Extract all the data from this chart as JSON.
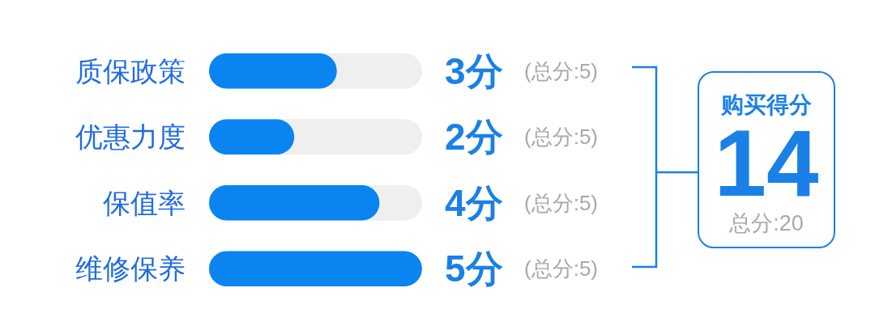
{
  "chart_data": [
    {
      "type": "bar",
      "orientation": "horizontal",
      "categories": [
        "质保政策",
        "优惠力度",
        "保值率",
        "维修保养"
      ],
      "values": [
        3,
        2,
        4,
        5
      ],
      "color": "#0a84f0",
      "xlim": [
        0,
        5
      ],
      "value_labels": [
        "3分",
        "2分",
        "4分",
        "5分"
      ],
      "annotations": [
        "(总分:5)",
        "(总分:5)",
        "(总分:5)",
        "(总分:5)"
      ],
      "tick_labels": "y"
    },
    {
      "type": "other",
      "title": "购买得分",
      "annotations": [
        "14",
        "总分:20"
      ]
    }
  ]
}
